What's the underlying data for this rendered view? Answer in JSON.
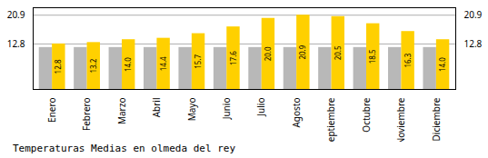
{
  "chart_data": {
    "type": "bar",
    "title": "Temperaturas Medias en olmeda del rey",
    "categories": [
      "Enero",
      "Febrero",
      "Marzo",
      "Abril",
      "Mayo",
      "Junio",
      "Julio",
      "Agosto",
      "Septiembre",
      "Octubre",
      "Noviembre",
      "Diciembre"
    ],
    "series": [
      {
        "color": "#B8B8B8",
        "values": [
          11.8,
          11.8,
          11.8,
          11.8,
          11.8,
          11.8,
          11.8,
          11.8,
          11.8,
          11.8,
          11.8,
          11.8
        ]
      },
      {
        "color": "#FFD000",
        "values": [
          12.8,
          13.2,
          14.0,
          14.4,
          15.7,
          17.6,
          20.0,
          20.9,
          20.5,
          18.5,
          16.3,
          14.0
        ],
        "value_labels": [
          "12.8",
          "13.2",
          "14.0",
          "14.4",
          "15.7",
          "17.6",
          "20.0",
          "20.9",
          "20.5",
          "18.5",
          "16.3",
          "14.0"
        ],
        "data_labels": true
      }
    ],
    "ylim": [
      0,
      23.0
    ],
    "yticks": [
      12.8,
      20.9
    ],
    "y2lim": [
      0,
      23.0
    ],
    "y2ticks": [
      12.8,
      20.9
    ],
    "grid": true
  }
}
